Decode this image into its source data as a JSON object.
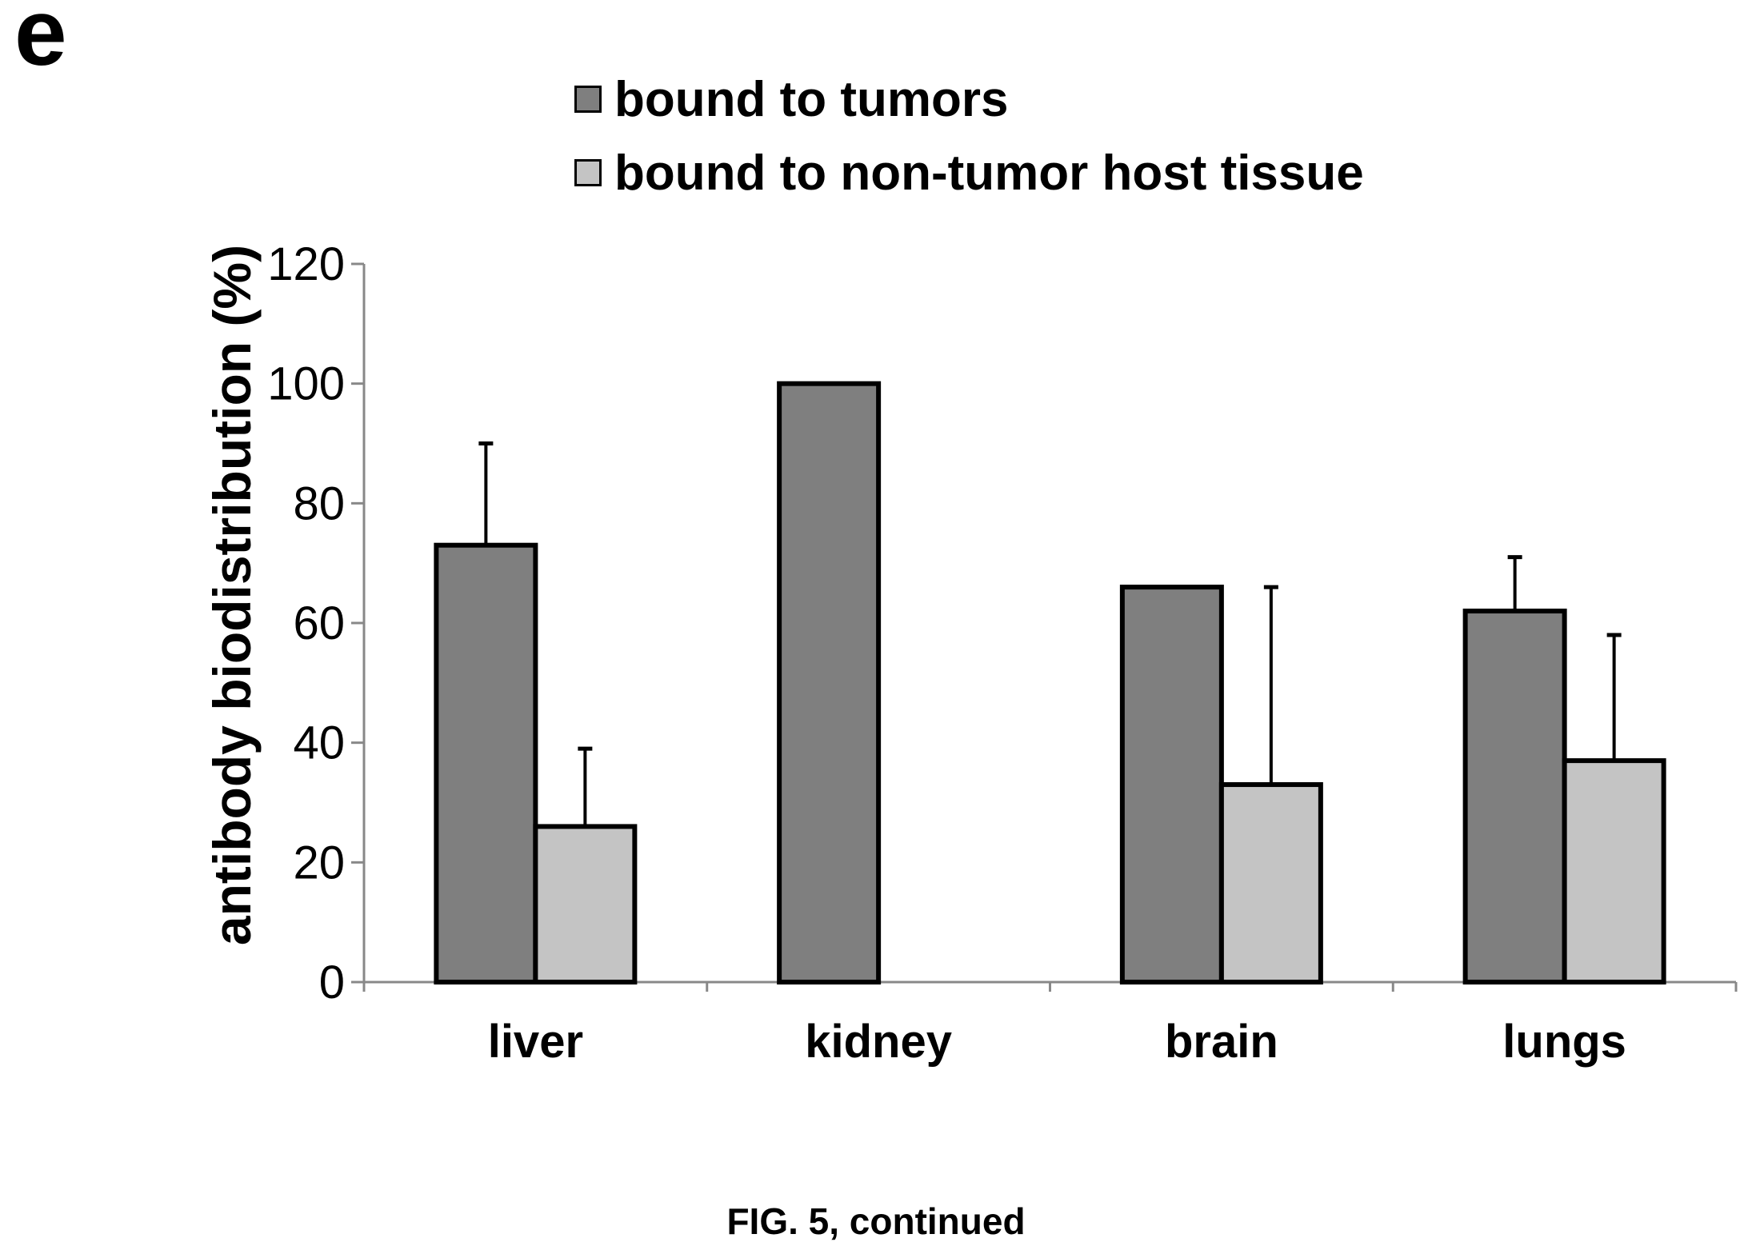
{
  "panel_label": "e",
  "caption": "FIG. 5, continued",
  "colors": {
    "tumor": "#7f7f7f",
    "host": "#c4c4c4",
    "axis": "#888888",
    "outline": "#000000"
  },
  "chart_data": {
    "type": "bar",
    "title": "",
    "xlabel": "",
    "ylabel": "antibody biodistribution (%)",
    "ylim": [
      0,
      120
    ],
    "yticks": [
      0,
      20,
      40,
      60,
      80,
      100,
      120
    ],
    "grid": false,
    "legend_position": "top",
    "categories": [
      "liver",
      "kidney",
      "brain",
      "lungs"
    ],
    "series": [
      {
        "name": "bound to tumors",
        "color": "#7f7f7f",
        "values": [
          73,
          100,
          66,
          62
        ],
        "error_plus": [
          17,
          0,
          0,
          9
        ]
      },
      {
        "name": "bound to non-tumor host tissue",
        "color": "#c4c4c4",
        "values": [
          26,
          0,
          33,
          37
        ],
        "error_plus": [
          13,
          0,
          33,
          21
        ]
      }
    ]
  }
}
